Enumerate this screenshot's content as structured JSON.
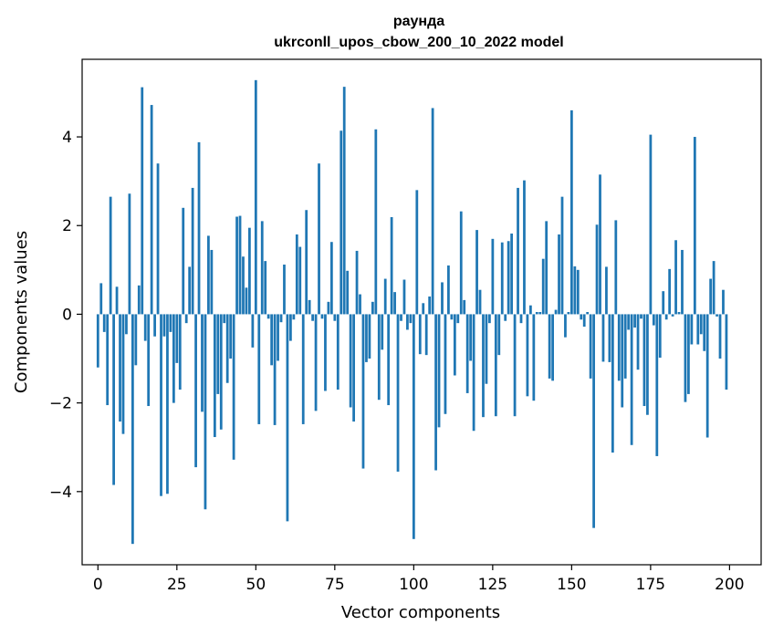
{
  "chart_data": {
    "type": "bar",
    "title_line1": "раунда",
    "title_line2": "ukrconll_upos_cbow_200_10_2022 model",
    "xlabel": "Vector components",
    "ylabel": "Components values",
    "xlim": [
      -5,
      210
    ],
    "ylim": [
      -5.65,
      5.75
    ],
    "xticks": [
      0,
      25,
      50,
      75,
      100,
      125,
      150,
      175,
      200
    ],
    "yticks": [
      -4,
      -2,
      0,
      2,
      4
    ],
    "xtick_labels": [
      "0",
      "25",
      "50",
      "75",
      "100",
      "125",
      "150",
      "175",
      "200"
    ],
    "ytick_labels": [
      "−4",
      "−2",
      "0",
      "2",
      "4"
    ],
    "grid": false,
    "bar_color": "#1f77b4",
    "values": [
      -1.2,
      0.7,
      -0.4,
      -2.05,
      2.65,
      -3.85,
      0.62,
      -2.42,
      -2.7,
      -0.45,
      2.72,
      -5.18,
      -1.15,
      0.65,
      5.12,
      -0.6,
      -2.07,
      4.72,
      -0.5,
      3.4,
      -4.1,
      -0.5,
      -4.05,
      -0.4,
      -2.0,
      -1.1,
      -1.7,
      2.4,
      -0.2,
      1.07,
      2.85,
      -3.45,
      3.88,
      -2.2,
      -4.4,
      1.77,
      1.45,
      -2.77,
      -1.8,
      -2.6,
      -0.2,
      -1.55,
      -1.0,
      -3.28,
      2.2,
      2.22,
      1.3,
      0.6,
      1.95,
      -0.75,
      5.28,
      -2.48,
      2.1,
      1.2,
      -0.1,
      -1.15,
      -2.5,
      -1.05,
      -0.18,
      1.12,
      -4.67,
      -0.6,
      -0.12,
      1.8,
      1.52,
      -2.48,
      2.35,
      0.32,
      -0.15,
      -2.18,
      3.4,
      -0.1,
      -1.73,
      0.28,
      1.63,
      -0.15,
      -1.7,
      4.14,
      5.13,
      0.98,
      -2.1,
      -2.42,
      1.43,
      0.45,
      -3.48,
      -1.08,
      -1.0,
      0.28,
      4.17,
      -1.93,
      -0.8,
      0.8,
      -2.05,
      2.19,
      0.5,
      -3.55,
      -0.15,
      0.78,
      -0.35,
      -0.2,
      -5.07,
      2.8,
      -0.9,
      0.25,
      -0.92,
      0.4,
      4.65,
      -3.52,
      -2.55,
      0.72,
      -2.25,
      1.1,
      -0.12,
      -1.38,
      -0.2,
      2.32,
      0.32,
      -1.78,
      -1.05,
      -2.63,
      1.9,
      0.55,
      -2.32,
      -1.57,
      -0.2,
      1.7,
      -2.3,
      -0.92,
      1.62,
      -0.15,
      1.65,
      1.82,
      -2.3,
      2.85,
      -0.2,
      3.02,
      -1.85,
      0.2,
      -1.95,
      0.05,
      0.05,
      1.25,
      2.1,
      -1.45,
      -1.5,
      0.1,
      1.8,
      2.65,
      -0.52,
      0.05,
      4.6,
      1.08,
      1.0,
      -0.12,
      -0.28,
      0.05,
      -1.45,
      -4.82,
      2.02,
      3.15,
      -1.07,
      1.07,
      -1.08,
      -3.12,
      2.12,
      -1.5,
      -2.1,
      -1.45,
      -0.35,
      -2.95,
      -0.3,
      -1.25,
      -0.1,
      -2.07,
      -2.27,
      4.05,
      -0.25,
      -3.2,
      -0.98,
      0.52,
      -0.12,
      1.02,
      -0.05,
      1.67,
      0.05,
      1.45,
      -1.98,
      -1.8,
      -0.68,
      4.0,
      -0.68,
      -0.45,
      -0.83,
      -2.78,
      0.8,
      1.2,
      -0.05,
      -1.0,
      0.55,
      -1.7
    ]
  }
}
